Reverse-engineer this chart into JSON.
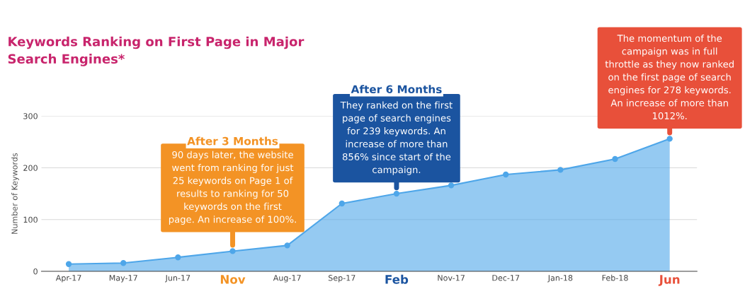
{
  "chart_data": {
    "type": "area",
    "title": "Keywords Ranking on First Page in Major\nSearch Engines*",
    "ylabel": "Number of Keywords",
    "categories": [
      "Apr-17",
      "May-17",
      "Jun-17",
      "Nov",
      "Aug-17",
      "Sep-17",
      "Feb",
      "Nov-17",
      "Dec-17",
      "Jan-18",
      "Feb-18",
      "Jun"
    ],
    "series": [
      {
        "color": "#4ea6e9",
        "values": [
          14,
          16,
          27,
          39,
          50,
          131,
          150,
          166,
          187,
          196,
          217,
          256
        ]
      }
    ],
    "ylim": [
      0,
      300
    ],
    "yticks": [
      0,
      100,
      200,
      300
    ],
    "grid": "y",
    "marker": "circle",
    "legend": false,
    "annotations": [
      {
        "text": "90 days later, the website\nwent from ranking for just\n25 keywords on Page 1 of\nresults to ranking for 50\nkeywords on the first\npage. An increase of 100%.",
        "x": "Nov",
        "y": 39
      },
      "After 3 Months",
      {
        "text": "They ranked on the first\npage of search engines\nfor 239 keywords. An\nincrease of more than\n856% since start of the\ncampaign.",
        "x": "Feb",
        "y": 150
      },
      "After 6 Months",
      {
        "text": "The momentum of the\ncampaign was in full\nthrottle as they now ranked\non the first page of search\nengines for 278 keywords.\nAn increase of more than\n1012%.",
        "x": "Jun",
        "y": 256
      }
    ]
  }
}
